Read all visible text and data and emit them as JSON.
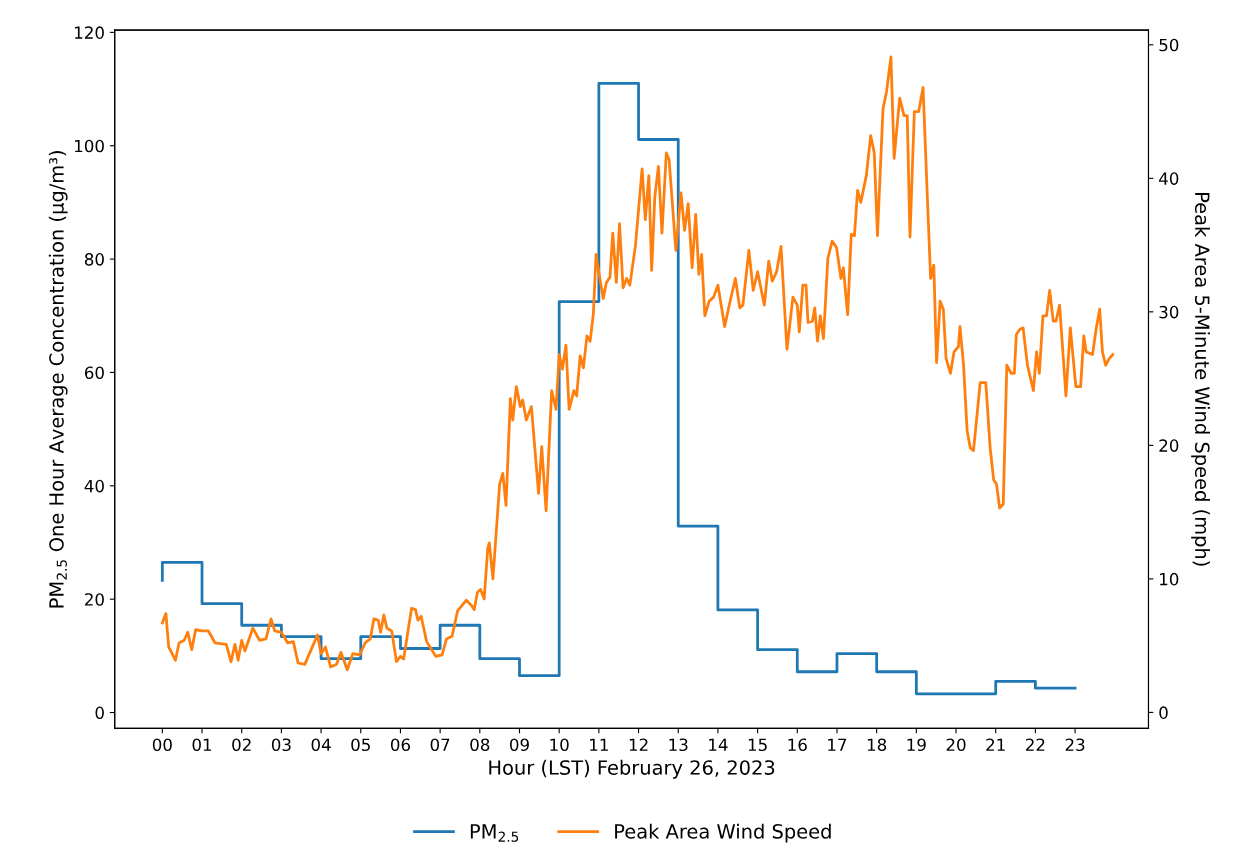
{
  "chart_data": {
    "type": "line",
    "xlabel": "Hour (LST) February 26, 2023",
    "ylabel": "PM$_{2.5}$ One Hour Average Concentration (µg/m³)",
    "y2label": "Peak Area 5-Minute Wind Speed (mph)",
    "xlim": [
      -1.2,
      24.85
    ],
    "ylim": [
      -2.8,
      120.4
    ],
    "y2lim": [
      -1.2,
      51.1
    ],
    "xticks": [
      {
        "value": 0,
        "label": "00"
      },
      {
        "value": 1,
        "label": "01"
      },
      {
        "value": 2,
        "label": "02"
      },
      {
        "value": 3,
        "label": "03"
      },
      {
        "value": 4,
        "label": "04"
      },
      {
        "value": 5,
        "label": "05"
      },
      {
        "value": 6,
        "label": "06"
      },
      {
        "value": 7,
        "label": "07"
      },
      {
        "value": 8,
        "label": "08"
      },
      {
        "value": 9,
        "label": "09"
      },
      {
        "value": 10,
        "label": "10"
      },
      {
        "value": 11,
        "label": "11"
      },
      {
        "value": 12,
        "label": "12"
      },
      {
        "value": 13,
        "label": "13"
      },
      {
        "value": 14,
        "label": "14"
      },
      {
        "value": 15,
        "label": "15"
      },
      {
        "value": 16,
        "label": "16"
      },
      {
        "value": 17,
        "label": "17"
      },
      {
        "value": 18,
        "label": "18"
      },
      {
        "value": 19,
        "label": "19"
      },
      {
        "value": 20,
        "label": "20"
      },
      {
        "value": 21,
        "label": "21"
      },
      {
        "value": 22,
        "label": "22"
      },
      {
        "value": 23,
        "label": "23"
      }
    ],
    "yticks": [
      0,
      20,
      40,
      60,
      80,
      100,
      120
    ],
    "y2ticks": [
      0,
      10,
      20,
      30,
      40,
      50
    ],
    "legend": "bottom",
    "grid": false,
    "series": [
      {
        "name": "PM$_{2.5}$",
        "type": "step",
        "color": "#1f77b4",
        "x": [
          0,
          1,
          2,
          3,
          4,
          5,
          6,
          7,
          8,
          9,
          10,
          11,
          12,
          13,
          14,
          15,
          16,
          17,
          18,
          19,
          20,
          21,
          22,
          23
        ],
        "values": [
          23.3,
          26.5,
          19.2,
          15.4,
          13.4,
          9.5,
          13.4,
          11.3,
          15.4,
          9.5,
          6.5,
          72.5,
          111,
          101.1,
          32.9,
          18.1,
          11.1,
          7.2,
          10.4,
          7.2,
          3.3,
          3.3,
          5.5,
          4.3
        ]
      },
      {
        "name": "Peak Area Wind Speed",
        "axis": "y2",
        "color": "#ff7f0e",
        "x": [
          0,
          0.09,
          0.16,
          0.33,
          0.42,
          0.55,
          0.64,
          0.74,
          0.84,
          1.0,
          1.16,
          1.33,
          1.61,
          1.73,
          1.83,
          1.91,
          2.0,
          2.08,
          2.28,
          2.45,
          2.61,
          2.74,
          2.83,
          3.0,
          3.16,
          3.3,
          3.42,
          3.59,
          3.75,
          3.91,
          4.0,
          4.11,
          4.24,
          4.39,
          4.5,
          4.66,
          4.8,
          4.97,
          5.11,
          5.24,
          5.33,
          5.44,
          5.5,
          5.58,
          5.66,
          5.78,
          5.9,
          6.0,
          6.08,
          6.28,
          6.38,
          6.44,
          6.52,
          6.66,
          6.89,
          7.05,
          7.16,
          7.3,
          7.44,
          7.66,
          7.79,
          7.86,
          7.94,
          8.02,
          8.11,
          8.2,
          8.24,
          8.33,
          8.5,
          8.58,
          8.66,
          8.77,
          8.83,
          8.92,
          9.02,
          9.08,
          9.17,
          9.3,
          9.48,
          9.56,
          9.67,
          9.81,
          9.92,
          10.0,
          10.08,
          10.17,
          10.25,
          10.37,
          10.44,
          10.53,
          10.61,
          10.7,
          10.78,
          10.86,
          10.93,
          11.02,
          11.11,
          11.19,
          11.28,
          11.35,
          11.44,
          11.52,
          11.61,
          11.7,
          11.78,
          11.92,
          12.09,
          12.17,
          12.26,
          12.33,
          12.41,
          12.5,
          12.59,
          12.7,
          12.77,
          12.94,
          13.07,
          13.16,
          13.25,
          13.35,
          13.44,
          13.52,
          13.59,
          13.67,
          13.78,
          13.89,
          14.0,
          14.17,
          14.3,
          14.44,
          14.55,
          14.63,
          14.78,
          14.89,
          15.0,
          15.17,
          15.28,
          15.37,
          15.48,
          15.59,
          15.74,
          15.89,
          16.0,
          16.05,
          16.14,
          16.22,
          16.27,
          16.38,
          16.44,
          16.51,
          16.58,
          16.66,
          16.77,
          16.88,
          16.99,
          17.1,
          17.16,
          17.27,
          17.36,
          17.44,
          17.52,
          17.6,
          17.74,
          17.85,
          17.94,
          18.02,
          18.16,
          18.25,
          18.36,
          18.44,
          18.58,
          18.69,
          18.77,
          18.84,
          18.95,
          19.06,
          19.17,
          19.28,
          19.36,
          19.44,
          19.51,
          19.6,
          19.68,
          19.75,
          19.86,
          19.95,
          20.06,
          20.1,
          20.19,
          20.28,
          20.36,
          20.44,
          20.61,
          20.75,
          20.86,
          20.95,
          21.02,
          21.1,
          21.19,
          21.28,
          21.39,
          21.47,
          21.52,
          21.61,
          21.69,
          21.8,
          21.95,
          22.03,
          22.1,
          22.19,
          22.28,
          22.36,
          22.45,
          22.52,
          22.61,
          22.77,
          22.88,
          23.02,
          23.14,
          23.22,
          23.28,
          23.44,
          23.53,
          23.62,
          23.69,
          23.77,
          23.86,
          23.95
        ],
        "values": [
          6.7,
          7.4,
          4.9,
          3.9,
          5.2,
          5.4,
          6.0,
          4.7,
          6.2,
          6.1,
          6.1,
          5.2,
          5.1,
          3.8,
          5.1,
          3.9,
          5.4,
          4.6,
          6.3,
          5.4,
          5.5,
          7.0,
          6.1,
          6.0,
          5.2,
          5.3,
          3.7,
          3.6,
          4.7,
          5.8,
          4.4,
          4.9,
          3.4,
          3.6,
          4.5,
          3.2,
          4.4,
          4.3,
          5.2,
          5.5,
          7.0,
          6.9,
          6.0,
          7.3,
          6.3,
          6.1,
          3.8,
          4.2,
          4.0,
          7.8,
          7.7,
          6.9,
          7.2,
          5.3,
          4.2,
          4.3,
          5.5,
          5.7,
          7.6,
          8.4,
          8.0,
          7.7,
          9.0,
          9.2,
          8.5,
          12.3,
          12.7,
          10.0,
          17.1,
          17.9,
          15.5,
          23.5,
          21.9,
          24.4,
          22.9,
          23.4,
          21.9,
          22.9,
          16.4,
          19.9,
          15.1,
          24.1,
          22.7,
          26.8,
          25.7,
          27.5,
          22.7,
          24.1,
          23.7,
          26.7,
          25.8,
          28.2,
          27.8,
          29.8,
          34.3,
          32.6,
          31.0,
          32.2,
          32.6,
          35.9,
          32.2,
          36.6,
          31.8,
          32.5,
          32.0,
          34.9,
          40.7,
          36.9,
          40.2,
          33.1,
          38.6,
          40.9,
          35.9,
          41.9,
          41.4,
          34.6,
          38.9,
          36.1,
          38.1,
          33.3,
          37.3,
          32.8,
          34.3,
          29.7,
          30.8,
          31.1,
          32.0,
          28.9,
          30.7,
          32.5,
          30.3,
          30.5,
          34.6,
          31.6,
          33.0,
          30.5,
          33.8,
          32.3,
          33.0,
          34.9,
          27.2,
          31.1,
          30.5,
          28.5,
          32.0,
          32.0,
          29.2,
          29.3,
          30.3,
          27.8,
          29.7,
          28.0,
          34.0,
          35.3,
          34.8,
          32.5,
          33.3,
          29.8,
          35.8,
          35.7,
          39.1,
          38.2,
          40.2,
          43.2,
          41.9,
          35.7,
          45.2,
          46.5,
          49.1,
          41.5,
          46.0,
          44.7,
          44.7,
          35.6,
          45.0,
          45.0,
          46.8,
          38.4,
          32.5,
          33.5,
          26.2,
          30.8,
          30.2,
          26.5,
          25.4,
          27.0,
          27.4,
          28.9,
          26.0,
          21.1,
          19.8,
          19.6,
          24.7,
          24.7,
          19.8,
          17.4,
          17.1,
          15.3,
          15.6,
          26.0,
          25.4,
          25.4,
          28.3,
          28.7,
          28.8,
          26.0,
          24.1,
          27.0,
          25.4,
          29.7,
          29.7,
          31.6,
          29.3,
          29.3,
          30.5,
          23.7,
          28.8,
          24.4,
          24.4,
          28.2,
          27.0,
          26.8,
          28.7,
          30.2,
          27.0,
          26.0,
          26.5,
          26.8
        ]
      }
    ]
  }
}
